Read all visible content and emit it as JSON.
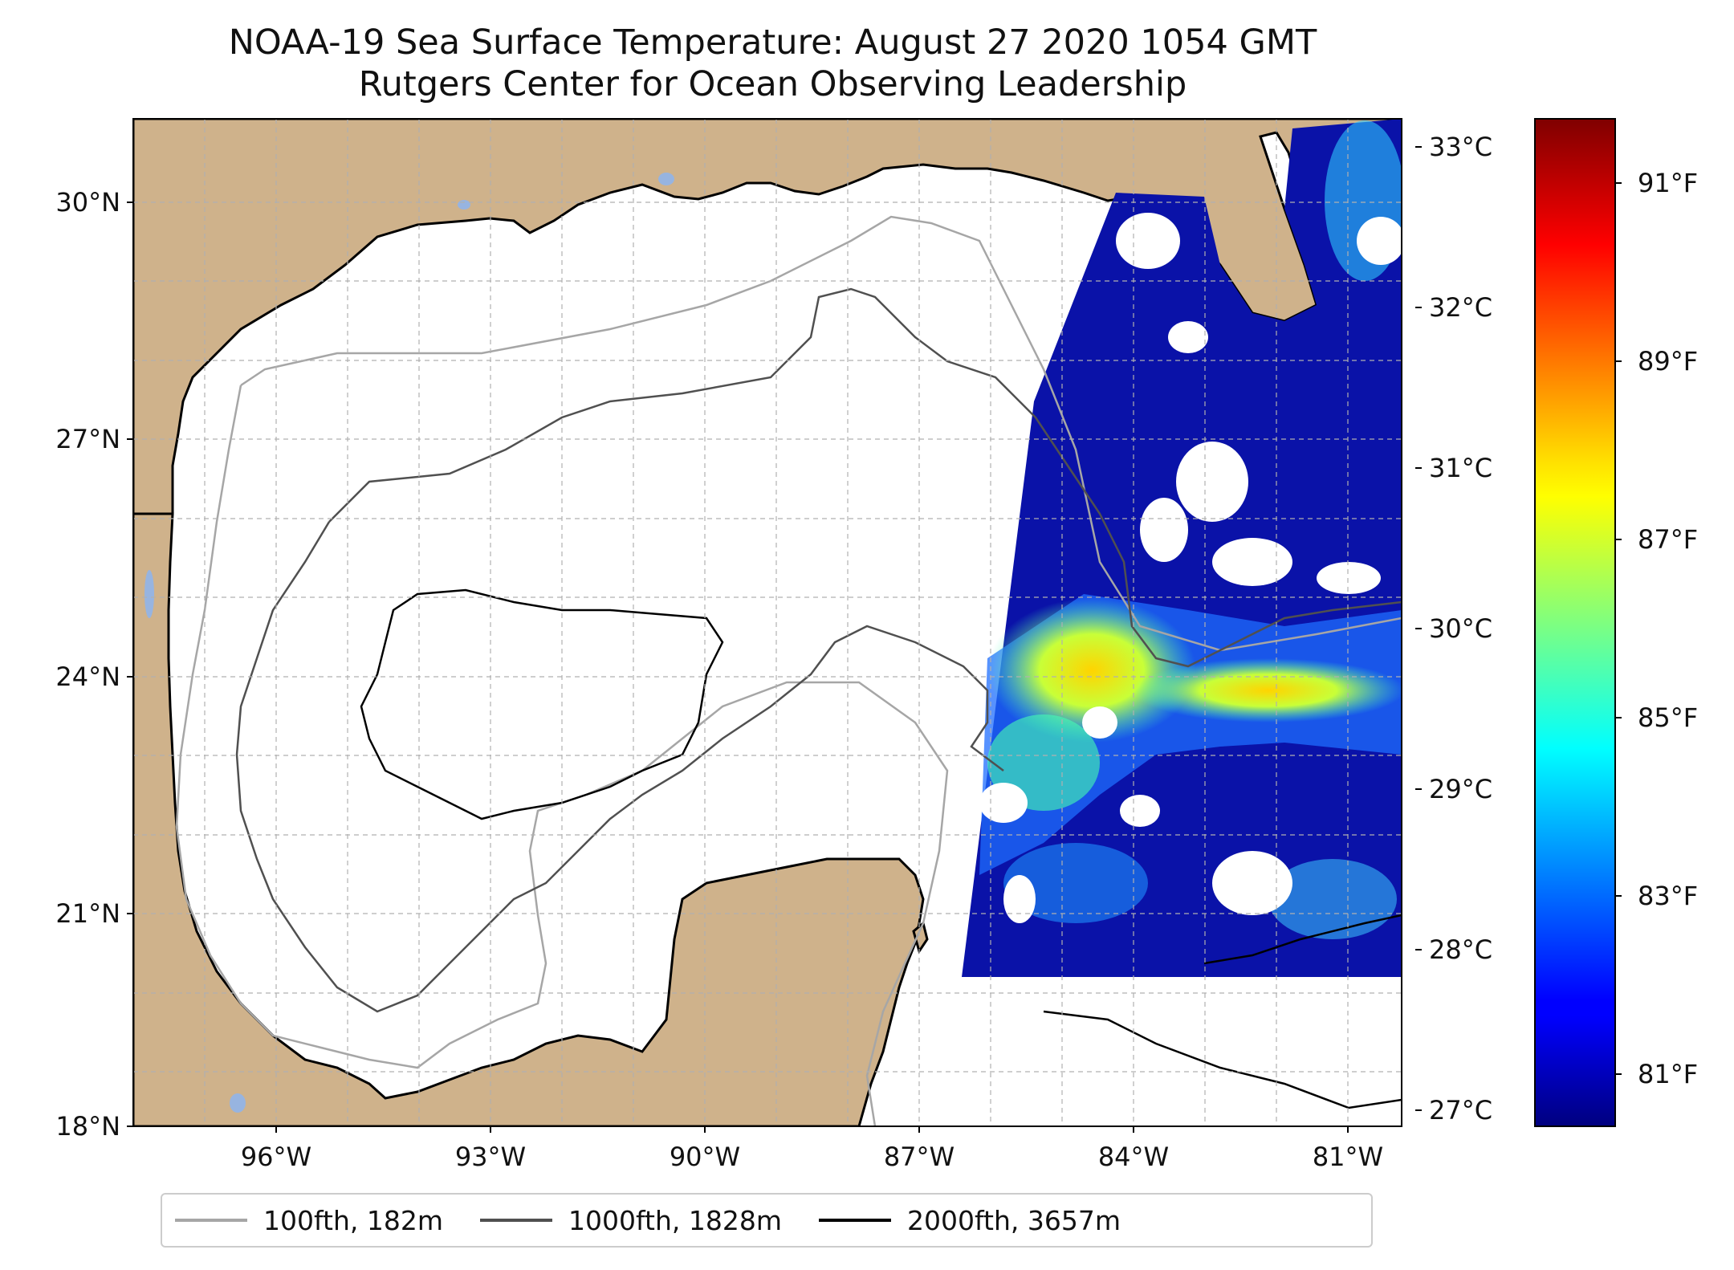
{
  "title": {
    "line1": "NOAA-19 Sea Surface Temperature: August 27 2020 1054 GMT",
    "line2": "Rutgers Center for Ocean Observing Leadership"
  },
  "map": {
    "region": "Gulf of Mexico",
    "lon_range": [
      -98,
      -80.25
    ],
    "lat_range": [
      18,
      31
    ],
    "lat_ticks": [
      "30°N",
      "27°N",
      "24°N",
      "21°N",
      "18°N"
    ],
    "lon_ticks": [
      "96°W",
      "93°W",
      "90°W",
      "87°W",
      "84°W",
      "81°W"
    ],
    "gridlines": true,
    "colors": {
      "land": "#cfb28b",
      "lakes": "#97b4e0",
      "ocean": "#ffffff",
      "coastline": "#000000",
      "grid": "#b0b0b0"
    }
  },
  "colorbar": {
    "colormap": "jet",
    "celsius_ticks": [
      "33°C",
      "32°C",
      "31°C",
      "30°C",
      "29°C",
      "28°C",
      "27°C"
    ],
    "fahrenheit_ticks": [
      "91°F",
      "89°F",
      "87°F",
      "85°F",
      "83°F",
      "81°F"
    ]
  },
  "legend": {
    "items": [
      {
        "label": "100fth, 182m",
        "color": "#a6a6a6"
      },
      {
        "label": "1000fth, 1828m",
        "color": "#505050"
      },
      {
        "label": "2000fth, 3657m",
        "color": "#000000"
      }
    ]
  }
}
